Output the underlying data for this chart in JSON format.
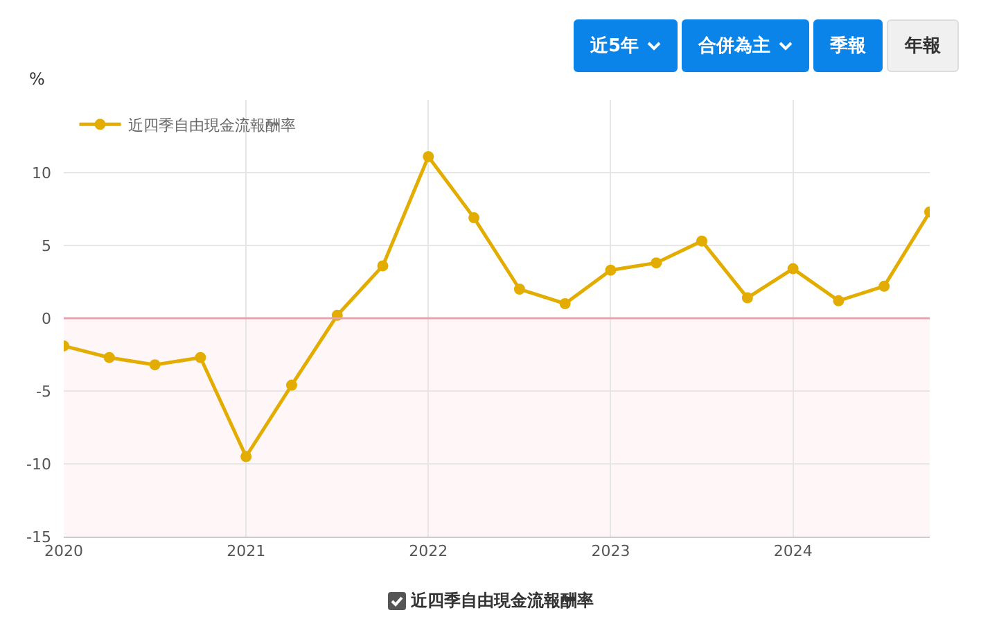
{
  "chart_data": {
    "type": "line",
    "ylabel": "%",
    "x": [
      2020,
      2020.25,
      2020.5,
      2020.75,
      2021,
      2021.25,
      2021.5,
      2021.75,
      2022,
      2022.25,
      2022.5,
      2022.75,
      2023,
      2023.25,
      2023.5,
      2023.75,
      2024,
      2024.25,
      2024.5,
      2024.75
    ],
    "series": [
      {
        "name": "近四季自由現金流報酬率",
        "color": "#e2ad00",
        "values": [
          -1.9,
          -2.7,
          -3.2,
          -2.7,
          -9.5,
          -4.6,
          0.2,
          3.6,
          11.1,
          6.9,
          2.0,
          1.0,
          3.3,
          3.8,
          5.3,
          1.4,
          3.4,
          1.2,
          2.2,
          7.3
        ]
      }
    ],
    "xlim": [
      2020,
      2024.75
    ],
    "xticks": [
      2020,
      2021,
      2022,
      2023,
      2024
    ],
    "ylim": [
      -15,
      15
    ],
    "yticks": [
      -15,
      -10,
      -5,
      0,
      5,
      10
    ],
    "ref_lines": [
      {
        "axis": "y",
        "value": 0,
        "color": "#e8a3ad"
      }
    ],
    "bands": [
      {
        "axis": "y",
        "from": -15,
        "to": 0,
        "color": "#fff6f8"
      }
    ],
    "annotations": [
      "近5年",
      "合併為主",
      "季報",
      "年報"
    ],
    "grid": true,
    "legend": "top left",
    "marker": "circle",
    "line_style": "solid"
  }
}
